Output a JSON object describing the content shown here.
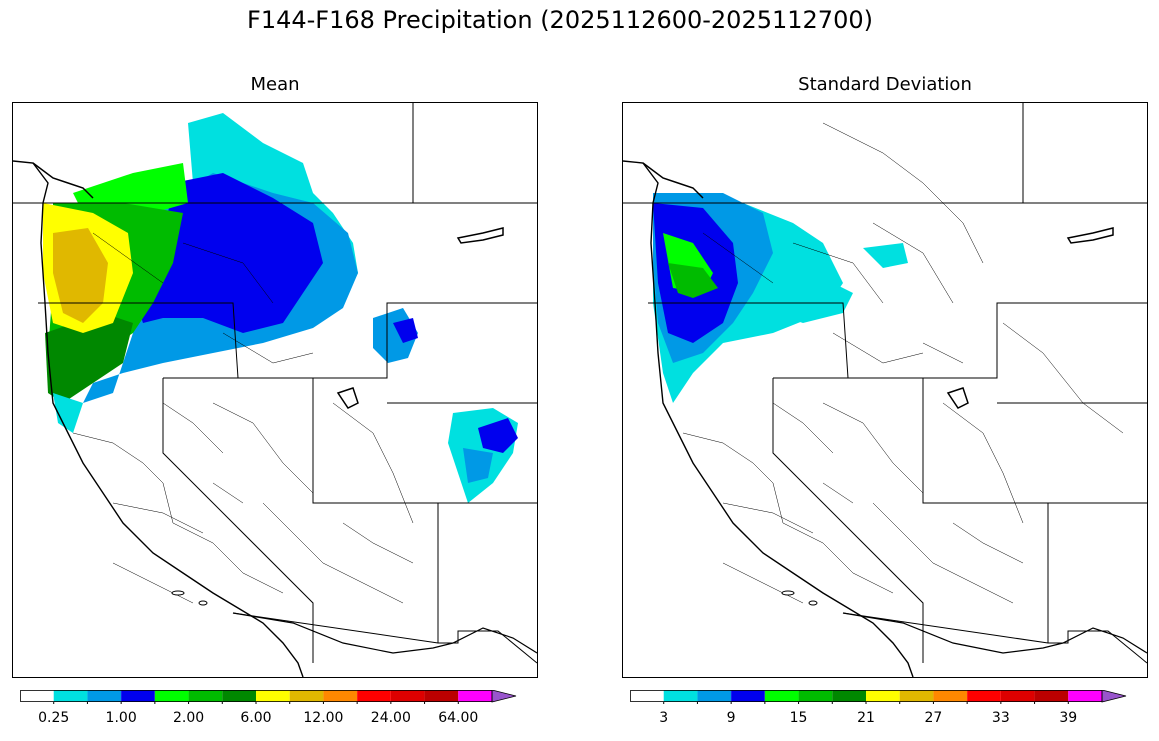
{
  "title": "F144-F168 Precipitation (2025112600-2025112700)",
  "panels": [
    {
      "title": "Mean",
      "colorbar": {
        "colors": [
          "#ffffff",
          "#00e0e0",
          "#0099e6",
          "#0000ee",
          "#00ff00",
          "#00bb00",
          "#008800",
          "#ffff00",
          "#e0b800",
          "#ff8800",
          "#ff0000",
          "#dd0000",
          "#bb0000",
          "#ff00ff",
          "#9955cc"
        ],
        "tick_labels": [
          "0.25",
          "1.00",
          "2.00",
          "6.00",
          "12.00",
          "24.00",
          "64.00"
        ],
        "extend": "max"
      }
    },
    {
      "title": "Standard Deviation",
      "colorbar": {
        "colors": [
          "#ffffff",
          "#00e0e0",
          "#0099e6",
          "#0000ee",
          "#00ff00",
          "#00bb00",
          "#008800",
          "#ffff00",
          "#e0b800",
          "#ff8800",
          "#ff0000",
          "#dd0000",
          "#bb0000",
          "#ff00ff",
          "#9955cc"
        ],
        "tick_labels": [
          "3",
          "9",
          "15",
          "21",
          "27",
          "33",
          "39"
        ],
        "extend": "max"
      }
    }
  ]
}
